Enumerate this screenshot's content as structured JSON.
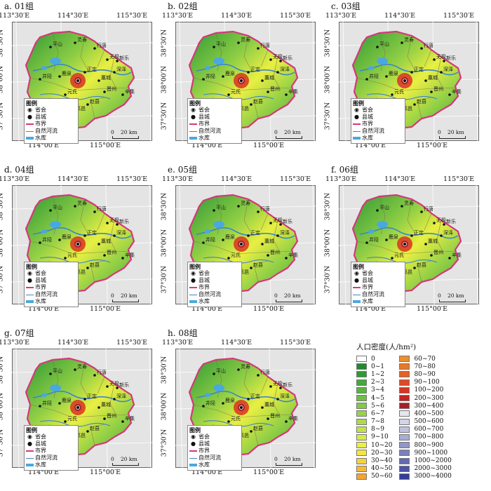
{
  "ticks": {
    "top_left": "113°30′E",
    "top_mid": "114°30′E",
    "top_right": "115°30′E",
    "bottom_left": "114°00′E",
    "bottom_right": "115°00′E",
    "lat_a": "38°30′N",
    "lat_b": "38°00′N",
    "lat_c": "37°30′N"
  },
  "panels": [
    {
      "label": "a. 01组"
    },
    {
      "label": "b. 02组"
    },
    {
      "label": "c. 03组"
    },
    {
      "label": "d. 04组"
    },
    {
      "label": "e. 05组"
    },
    {
      "label": "f. 06组"
    },
    {
      "label": "g. 07组"
    },
    {
      "label": "h. 08组"
    }
  ],
  "map_legend": {
    "title": "图例",
    "items": [
      "省会",
      "县城",
      "市界",
      "自然河流",
      "水库"
    ]
  },
  "scale": {
    "zero": "0",
    "distance": "20 km"
  },
  "city_labels": [
    "平山",
    "灵寿",
    "行唐",
    "新乐",
    "鹿泉",
    "正定",
    "藁城",
    "井陉",
    "元氏",
    "赞皇",
    "赵县",
    "晋州",
    "辛集",
    "深泽",
    "无极",
    "高邑"
  ],
  "density_legend": {
    "title": "人口密度(人/hm²)",
    "left": [
      {
        "label": "0",
        "color": "#ffffff"
      },
      {
        "label": "0~1",
        "color": "#1f8a2e"
      },
      {
        "label": "1~2",
        "color": "#2f9a35"
      },
      {
        "label": "2~3",
        "color": "#43a93a"
      },
      {
        "label": "3~4",
        "color": "#58b63f"
      },
      {
        "label": "4~5",
        "color": "#6cc043"
      },
      {
        "label": "5~6",
        "color": "#82c945"
      },
      {
        "label": "6~7",
        "color": "#98d246"
      },
      {
        "label": "7~8",
        "color": "#addb47"
      },
      {
        "label": "8~9",
        "color": "#c3e347"
      },
      {
        "label": "9~10",
        "color": "#d7ea45"
      },
      {
        "label": "10~20",
        "color": "#e9ef43"
      },
      {
        "label": "20~30",
        "color": "#f5e63e"
      },
      {
        "label": "30~40",
        "color": "#f7d23a"
      },
      {
        "label": "40~50",
        "color": "#f5bb35"
      },
      {
        "label": "50~60",
        "color": "#f2a530"
      }
    ],
    "right": [
      {
        "label": "60~70",
        "color": "#ee8f2c"
      },
      {
        "label": "70~80",
        "color": "#ea7829"
      },
      {
        "label": "80~90",
        "color": "#e56126"
      },
      {
        "label": "90~100",
        "color": "#df4a24"
      },
      {
        "label": "100~200",
        "color": "#d93322"
      },
      {
        "label": "200~300",
        "color": "#c52222"
      },
      {
        "label": "300~400",
        "color": "#a81e28"
      },
      {
        "label": "400~500",
        "color": "#e6e6ee"
      },
      {
        "label": "500~600",
        "color": "#d3d4e6"
      },
      {
        "label": "600~700",
        "color": "#bfc1dd"
      },
      {
        "label": "700~800",
        "color": "#a9acd3"
      },
      {
        "label": "800~900",
        "color": "#9296c8"
      },
      {
        "label": "900~1000",
        "color": "#7b80bd"
      },
      {
        "label": "1000~2000",
        "color": "#636ab1"
      },
      {
        "label": "2000~3000",
        "color": "#4b54a5"
      },
      {
        "label": "3000~4000",
        "color": "#343e99"
      }
    ]
  },
  "colors": {
    "boundary": "#d4387a",
    "river": "#3c86c8",
    "reservoir": "#4aa8e0",
    "land": "#7cc24a"
  }
}
